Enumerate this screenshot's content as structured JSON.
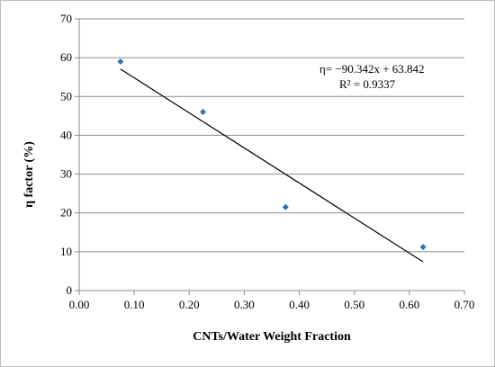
{
  "chart_data": {
    "type": "scatter",
    "xlabel": "CNTs/Water Weight Fraction",
    "ylabel": "η factor  (%)",
    "xlim": [
      0,
      0.7
    ],
    "ylim": [
      0,
      70
    ],
    "x_ticks": [
      "0.00",
      "0.10",
      "0.20",
      "0.30",
      "0.40",
      "0.50",
      "0.60",
      "0.70"
    ],
    "y_ticks": [
      "0",
      "10",
      "20",
      "30",
      "40",
      "50",
      "60",
      "70"
    ],
    "grid": "horizontal",
    "series": [
      {
        "x": [
          0.075,
          0.225,
          0.375,
          0.625
        ],
        "y": [
          59.0,
          46.0,
          21.5,
          11.2
        ],
        "color": "#2e75b6",
        "marker": "diamond"
      }
    ],
    "trendline": {
      "type": "linear",
      "slope": -90.342,
      "intercept": 63.842,
      "x_range": [
        0.075,
        0.625
      ],
      "color": "#000000"
    },
    "annotations": {
      "equation": "η= −90.342x + 63.842",
      "r_squared": "R² = 0.9337"
    }
  }
}
